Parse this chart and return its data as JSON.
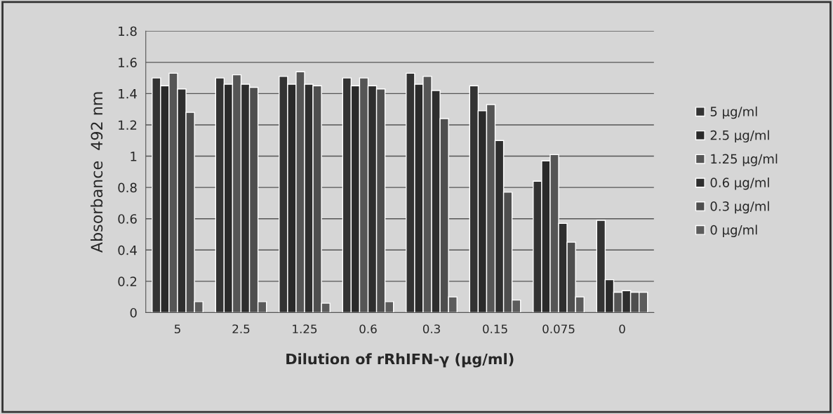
{
  "chart_data": {
    "type": "bar",
    "xlabel": "Dilution of rRhIFN-γ (μg/ml)",
    "ylabel": "Absorbance  492 nm",
    "categories": [
      "5",
      "2.5",
      "1.25",
      "0.6",
      "0.3",
      "0.15",
      "0.075",
      "0"
    ],
    "series": [
      {
        "name": "5 μg/ml",
        "color": "#333333",
        "values": [
          1.5,
          1.5,
          1.51,
          1.5,
          1.53,
          1.45,
          0.84,
          0.59
        ]
      },
      {
        "name": "2.5 μg/ml",
        "color": "#2a2a2a",
        "values": [
          1.45,
          1.46,
          1.46,
          1.45,
          1.46,
          1.29,
          0.97,
          0.21
        ]
      },
      {
        "name": "1.25 μg/ml",
        "color": "#555555",
        "values": [
          1.53,
          1.52,
          1.54,
          1.5,
          1.51,
          1.33,
          1.01,
          0.13
        ]
      },
      {
        "name": "0.6 μg/ml",
        "color": "#2e2e2e",
        "values": [
          1.43,
          1.46,
          1.46,
          1.45,
          1.42,
          1.1,
          0.57,
          0.14
        ]
      },
      {
        "name": "0.3 μg/ml",
        "color": "#4e4e4e",
        "values": [
          1.28,
          1.44,
          1.45,
          1.43,
          1.24,
          0.77,
          0.45,
          0.13
        ]
      },
      {
        "name": "0 μg/ml",
        "color": "#5c5c5c",
        "values": [
          0.07,
          0.07,
          0.06,
          0.07,
          0.1,
          0.08,
          0.1,
          0.13
        ]
      }
    ],
    "ylim": [
      0,
      1.8
    ],
    "yticks": [
      0,
      0.2,
      0.4,
      0.6,
      0.8,
      1,
      1.2,
      1.4,
      1.6,
      1.8
    ],
    "grid": "y",
    "legend": "right"
  }
}
